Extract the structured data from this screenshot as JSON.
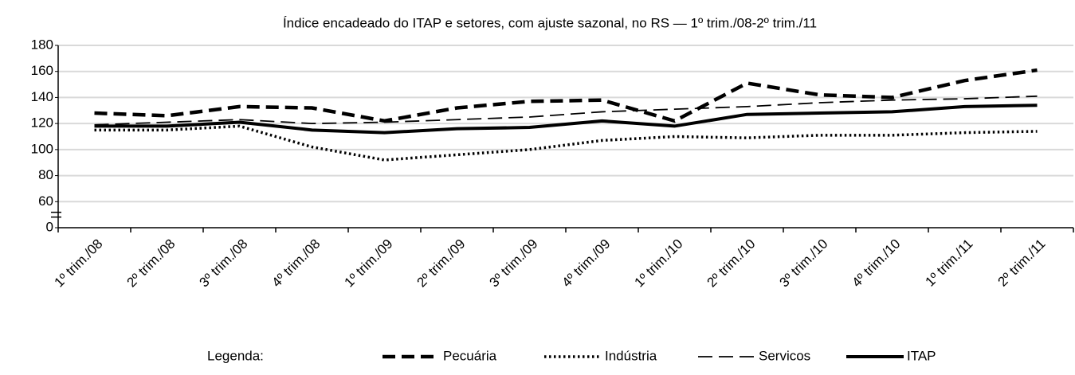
{
  "chart_data": {
    "type": "line",
    "title": "Índice encadeado do ITAP e setores, com ajuste sazonal, no RS — 1º trim./08-2º trim./11",
    "categories": [
      "1º trim./08",
      "2º trim./08",
      "3º trim./08",
      "4º trim./08",
      "1º trim./09",
      "2º trim./09",
      "3º trim./09",
      "4º trim./09",
      "1º trim./10",
      "2º trim./10",
      "3º trim./10",
      "4º trim./10",
      "1º trim./11",
      "2º trim./11"
    ],
    "series": [
      {
        "name": "Pecuária",
        "color": "#000000",
        "style": "dashed",
        "values": [
          128,
          126,
          133,
          132,
          122,
          132,
          137,
          138,
          122,
          151,
          142,
          140,
          153,
          161
        ]
      },
      {
        "name": "Indústria",
        "color": "#000000",
        "style": "dotted",
        "values": [
          115,
          115,
          118,
          102,
          92,
          96,
          100,
          107,
          110,
          109,
          111,
          111,
          113,
          114
        ]
      },
      {
        "name": "Servicos",
        "color": "#000000",
        "style": "longdash",
        "values": [
          119,
          121,
          123,
          120,
          121,
          123,
          125,
          129,
          131,
          133,
          136,
          138,
          139,
          141
        ]
      },
      {
        "name": "ITAP",
        "color": "#000000",
        "style": "solid",
        "values": [
          118,
          118,
          121,
          115,
          113,
          116,
          117,
          122,
          118,
          127,
          128,
          129,
          133,
          134
        ]
      }
    ],
    "ylim": [
      0,
      180
    ],
    "yticks": [
      0,
      60,
      80,
      100,
      120,
      140,
      160,
      180
    ],
    "axis_break": [
      0,
      60
    ],
    "grid": true,
    "legend_title": "Legenda:",
    "legend": "bottom"
  }
}
